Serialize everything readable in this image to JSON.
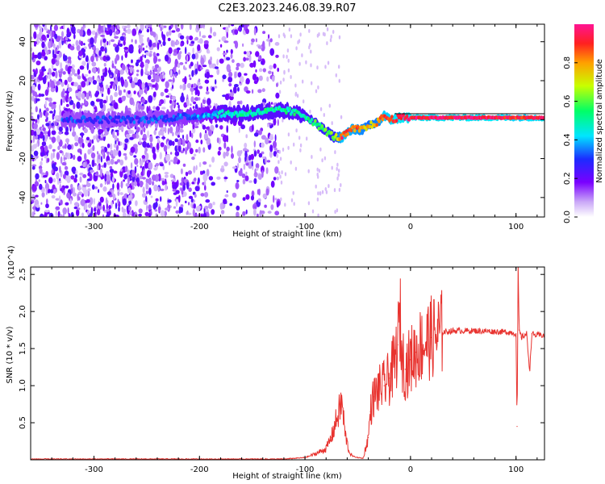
{
  "title": "C2E3.2023.246.08.39.R07",
  "colors": {
    "snr_line": "#e8332f",
    "frame": "#000000",
    "spectrum_low": "#7c1cff",
    "spectrum_faint": "#d9b8ff"
  },
  "chart_data": [
    {
      "type": "heatmap",
      "title": "C2E3.2023.246.08.39.R07",
      "xlabel": "Height of straight line (km)",
      "ylabel": "Frequency (Hz)",
      "xlim": [
        -360,
        127
      ],
      "ylim": [
        -50,
        49
      ],
      "xticks": [
        -300,
        -200,
        -100,
        0,
        100
      ],
      "xtick_labels": [
        "-300",
        "-200",
        "-100",
        "0",
        "100"
      ],
      "yticks": [
        -40,
        -20,
        0,
        20,
        40
      ],
      "ytick_labels": [
        "-40",
        "-20",
        "0",
        "20",
        "40"
      ],
      "colorbar": {
        "label": "Normalized spectral amplitude",
        "range": [
          0.0,
          1.0
        ],
        "ticks": [
          0.0,
          0.2,
          0.4,
          0.6,
          0.8
        ],
        "tick_labels": [
          "0.0",
          "0.2",
          "0.4",
          "0.6",
          "0.8"
        ],
        "colormap": "rainbow (white-violet-blue-cyan-green-yellow-red-magenta)"
      },
      "ridge": {
        "x": [
          -300,
          -250,
          -200,
          -180,
          -160,
          -140,
          -120,
          -100,
          -90,
          -80,
          -72,
          -65,
          -55,
          -45,
          -38,
          -30,
          -25,
          -20,
          -10,
          0,
          20,
          50,
          80,
          100,
          127
        ],
        "frequency": [
          0,
          0,
          2,
          3,
          3,
          4,
          5,
          2,
          -2,
          -6,
          -9,
          -9,
          -5,
          -5,
          -3,
          -1,
          2,
          0,
          1,
          1,
          1,
          1,
          1,
          1,
          1
        ],
        "amplitude": [
          0.3,
          0.3,
          0.35,
          0.45,
          0.5,
          0.5,
          0.5,
          0.5,
          0.55,
          0.6,
          0.6,
          0.9,
          0.85,
          0.8,
          0.75,
          0.8,
          0.9,
          0.9,
          0.95,
          0.95,
          0.95,
          0.95,
          0.95,
          0.9,
          0.95
        ]
      },
      "noise_region": {
        "x_range": [
          -360,
          -125
        ],
        "frequency_range": [
          -50,
          49
        ],
        "amplitude_range": [
          0.0,
          0.2
        ]
      },
      "reference_line_frequency": 3
    },
    {
      "type": "line",
      "xlabel": "Height of straight line (km)",
      "ylabel": "SNR (10 * v/v)",
      "y_multiplier": "(x10^4)",
      "xlim": [
        -360,
        127
      ],
      "ylim": [
        0,
        2.6
      ],
      "xticks": [
        -300,
        -200,
        -100,
        0,
        100
      ],
      "xtick_labels": [
        "-300",
        "-200",
        "-100",
        "0",
        "100"
      ],
      "yticks": [
        0.5,
        1.0,
        1.5,
        2.0,
        2.5
      ],
      "ytick_labels": [
        "0.5",
        "1.0",
        "1.5",
        "2.0",
        "2.5"
      ],
      "series": [
        {
          "name": "SNR",
          "x": [
            -360,
            -300,
            -250,
            -200,
            -150,
            -120,
            -100,
            -90,
            -80,
            -75,
            -70,
            -65,
            -62,
            -58,
            -55,
            -50,
            -45,
            -40,
            -38,
            -35,
            -30,
            -25,
            -20,
            -15,
            -12,
            -10,
            -8,
            -5,
            0,
            5,
            10,
            20,
            30,
            40,
            60,
            80,
            95,
            100,
            101,
            102,
            103,
            105,
            110,
            113,
            115,
            118,
            127
          ],
          "y": [
            0.01,
            0.01,
            0.01,
            0.01,
            0.01,
            0.01,
            0.03,
            0.08,
            0.15,
            0.3,
            0.55,
            0.78,
            0.35,
            0.1,
            0.05,
            0.03,
            0.02,
            0.3,
            0.65,
            0.85,
            0.95,
            1.0,
            1.1,
            1.3,
            1.55,
            1.94,
            1.4,
            1.22,
            1.35,
            1.45,
            1.55,
            1.65,
            1.72,
            1.74,
            1.74,
            1.73,
            1.72,
            1.7,
            0.45,
            2.6,
            1.75,
            1.65,
            1.7,
            1.2,
            1.7,
            1.68,
            1.68
          ]
        }
      ]
    }
  ]
}
